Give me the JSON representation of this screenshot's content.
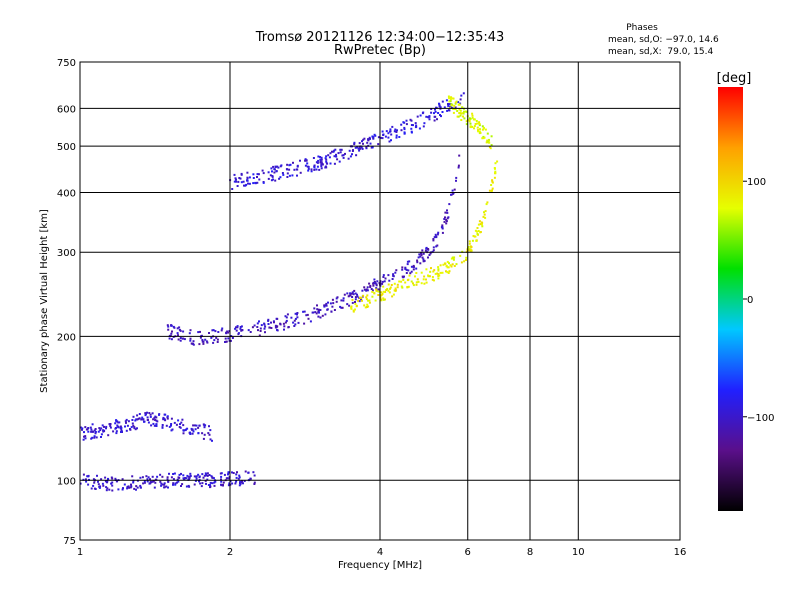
{
  "chart_data": {
    "type": "scatter",
    "title": "Tromsø 20121126 12:34:00−12:35:43",
    "subtitle": "RwPretec (Bp)",
    "xlabel": "Frequency [MHz]",
    "ylabel": "Stationary phase Virtual Height [km]",
    "x_scale": "log",
    "y_scale": "log",
    "xlim": [
      1,
      16
    ],
    "ylim": [
      75,
      750
    ],
    "x_ticks": [
      "1",
      "2",
      "4",
      "6",
      "8",
      "10",
      "16"
    ],
    "y_ticks": [
      "75",
      "100",
      "200",
      "300",
      "400",
      "500",
      "600",
      "750"
    ],
    "grid": true,
    "phase_stats": {
      "heading": "Phases",
      "line_o": "mean, sd,O: −97.0, 14.6",
      "line_x": "mean, sd,X:  79.0, 15.4"
    },
    "colorbar": {
      "unit_label": "[deg]",
      "range": [
        -180,
        180
      ],
      "tick_labels": [
        "100",
        "0",
        "−100"
      ],
      "tick_values": [
        100,
        0,
        -100
      ],
      "colors": [
        "#000000",
        "#5a0f8a",
        "#2020ff",
        "#00c8ff",
        "#00e000",
        "#e6ff00",
        "#ffa000",
        "#ff0000"
      ]
    },
    "traces": [
      {
        "name": "",
        "phase": -105,
        "freq_range": [
          1.5,
          5.8
        ],
        "heights_at": [
          [
            1.5,
            205
          ],
          [
            1.7,
            198
          ],
          [
            2.0,
            202
          ],
          [
            2.5,
            212
          ],
          [
            3.0,
            225
          ],
          [
            3.5,
            240
          ],
          [
            4.0,
            258
          ],
          [
            4.5,
            275
          ],
          [
            5.0,
            300
          ],
          [
            5.3,
            330
          ],
          [
            5.5,
            370
          ],
          [
            5.7,
            430
          ],
          [
            5.8,
            500
          ]
        ]
      },
      {
        "name": "",
        "phase": 85,
        "freq_range": [
          3.5,
          6.9
        ],
        "heights_at": [
          [
            3.5,
            230
          ],
          [
            4.0,
            245
          ],
          [
            4.5,
            258
          ],
          [
            5.0,
            268
          ],
          [
            5.5,
            280
          ],
          [
            6.0,
            300
          ],
          [
            6.3,
            330
          ],
          [
            6.6,
            380
          ],
          [
            6.8,
            440
          ],
          [
            6.9,
            490
          ]
        ]
      },
      {
        "name": "",
        "phase": -100,
        "freq_range": [
          1.0,
          2.25
        ],
        "heights_at": [
          [
            1.0,
            100
          ],
          [
            1.2,
            98
          ],
          [
            1.5,
            100
          ],
          [
            1.8,
            100
          ],
          [
            2.0,
            101
          ],
          [
            2.25,
            101
          ]
        ]
      },
      {
        "name": "",
        "phase": -98,
        "freq_range": [
          1.0,
          1.85
        ],
        "heights_at": [
          [
            1.0,
            125
          ],
          [
            1.2,
            130
          ],
          [
            1.4,
            135
          ],
          [
            1.6,
            130
          ],
          [
            1.85,
            125
          ]
        ]
      },
      {
        "name": "",
        "phase": -95,
        "freq_range": [
          2.0,
          5.9
        ],
        "heights_at": [
          [
            2.0,
            420
          ],
          [
            2.5,
            440
          ],
          [
            3.0,
            460
          ],
          [
            3.5,
            490
          ],
          [
            4.0,
            520
          ],
          [
            4.5,
            545
          ],
          [
            5.0,
            575
          ],
          [
            5.5,
            610
          ],
          [
            5.9,
            640
          ]
        ]
      },
      {
        "name": "",
        "phase": 75,
        "freq_range": [
          5.5,
          6.7
        ],
        "heights_at": [
          [
            5.5,
            620
          ],
          [
            5.9,
            580
          ],
          [
            6.2,
            560
          ],
          [
            6.5,
            530
          ],
          [
            6.7,
            510
          ]
        ]
      }
    ]
  }
}
